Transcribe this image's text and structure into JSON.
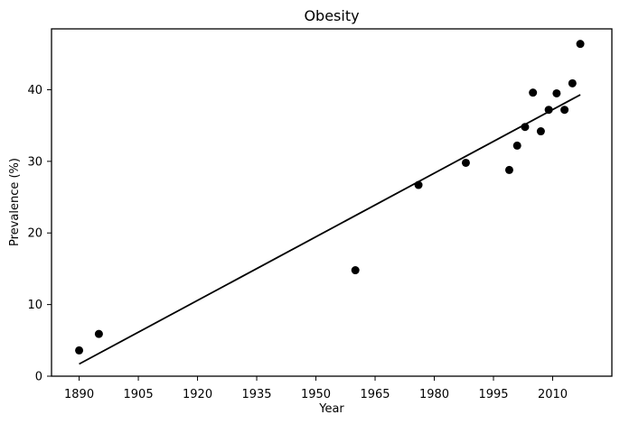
{
  "chart_data": {
    "type": "scatter",
    "title": "Obesity",
    "xlabel": "Year",
    "ylabel": "Prevalence (%)",
    "xlim": [
      1883,
      2025
    ],
    "ylim": [
      0,
      48.5
    ],
    "xticks": [
      1890,
      1905,
      1920,
      1935,
      1950,
      1965,
      1980,
      1995,
      2010
    ],
    "yticks": [
      0,
      10,
      20,
      30,
      40
    ],
    "grid": false,
    "series": [
      {
        "kind": "scatter",
        "color": "#000000",
        "x": [
          1890,
          1895,
          1960,
          1976,
          1988,
          1999,
          2001,
          2003,
          2005,
          2007,
          2009,
          2011,
          2013,
          2015,
          2017
        ],
        "y": [
          3.6,
          5.9,
          14.8,
          26.7,
          29.8,
          28.8,
          32.2,
          34.8,
          39.6,
          34.2,
          37.2,
          39.5,
          37.2,
          40.9,
          46.4
        ]
      },
      {
        "kind": "line",
        "color": "#000000",
        "x": [
          1890,
          2017
        ],
        "y": [
          1.7,
          39.3
        ]
      }
    ]
  }
}
